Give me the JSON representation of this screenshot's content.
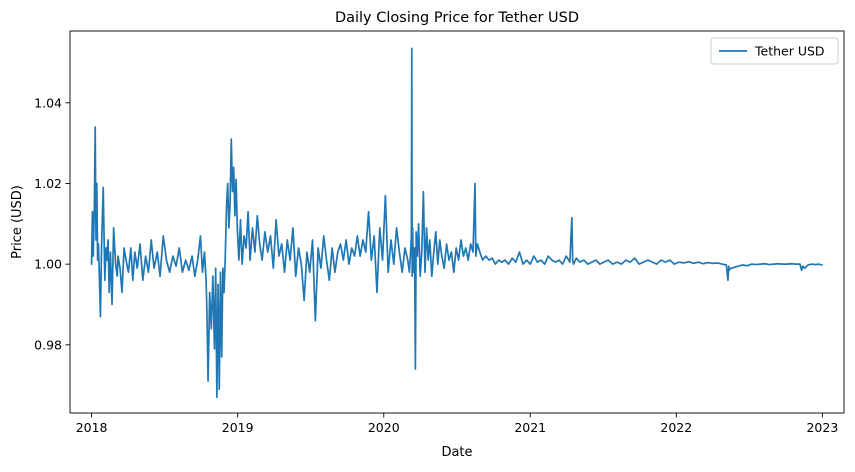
{
  "chart_data": {
    "type": "line",
    "title": "Daily Closing Price for Tether USD",
    "xlabel": "Date",
    "ylabel": "Price (USD)",
    "xlim": [
      "2017-11-08",
      "2023-02-24"
    ],
    "ylim": [
      0.9631,
      1.0578
    ],
    "x_ticks": [
      "2018",
      "2019",
      "2020",
      "2021",
      "2022",
      "2023"
    ],
    "y_ticks": [
      "0.98",
      "1.00",
      "1.02",
      "1.04"
    ],
    "grid": false,
    "legend_position": "upper right",
    "series": [
      {
        "name": "Tether USD",
        "color": "#1f77b4",
        "x": [
          "2018-01-01",
          "2018-01-03",
          "2018-01-05",
          "2018-01-08",
          "2018-01-10",
          "2018-01-12",
          "2018-01-14",
          "2018-01-16",
          "2018-01-18",
          "2018-01-20",
          "2018-01-23",
          "2018-01-26",
          "2018-01-30",
          "2018-02-03",
          "2018-02-06",
          "2018-02-08",
          "2018-02-11",
          "2018-02-14",
          "2018-02-17",
          "2018-02-21",
          "2018-02-25",
          "2018-03-02",
          "2018-03-06",
          "2018-03-08",
          "2018-03-13",
          "2018-03-18",
          "2018-03-23",
          "2018-03-28",
          "2018-04-03",
          "2018-04-09",
          "2018-04-14",
          "2018-04-19",
          "2018-04-25",
          "2018-05-02",
          "2018-05-09",
          "2018-05-16",
          "2018-05-23",
          "2018-05-30",
          "2018-06-06",
          "2018-06-14",
          "2018-06-21",
          "2018-06-29",
          "2018-07-07",
          "2018-07-15",
          "2018-07-23",
          "2018-07-31",
          "2018-08-08",
          "2018-08-16",
          "2018-08-24",
          "2018-09-01",
          "2018-09-09",
          "2018-09-16",
          "2018-09-23",
          "2018-09-30",
          "2018-10-05",
          "2018-10-10",
          "2018-10-14",
          "2018-10-16",
          "2018-10-19",
          "2018-10-23",
          "2018-10-27",
          "2018-10-31",
          "2018-11-04",
          "2018-11-07",
          "2018-11-10",
          "2018-11-13",
          "2018-11-16",
          "2018-11-19",
          "2018-11-22",
          "2018-11-25",
          "2018-11-28",
          "2018-12-01",
          "2018-12-04",
          "2018-12-07",
          "2018-12-10",
          "2018-12-13",
          "2018-12-16",
          "2018-12-19",
          "2018-12-22",
          "2018-12-25",
          "2018-12-28",
          "2018-12-31",
          "2019-01-04",
          "2019-01-08",
          "2019-01-12",
          "2019-01-17",
          "2019-01-22",
          "2019-01-27",
          "2019-02-01",
          "2019-02-07",
          "2019-02-13",
          "2019-02-19",
          "2019-02-25",
          "2019-03-03",
          "2019-03-10",
          "2019-03-17",
          "2019-03-24",
          "2019-03-31",
          "2019-04-07",
          "2019-04-14",
          "2019-04-21",
          "2019-04-28",
          "2019-05-05",
          "2019-05-12",
          "2019-05-19",
          "2019-05-26",
          "2019-06-02",
          "2019-06-09",
          "2019-06-16",
          "2019-06-23",
          "2019-06-30",
          "2019-07-07",
          "2019-07-14",
          "2019-07-21",
          "2019-07-28",
          "2019-08-04",
          "2019-08-11",
          "2019-08-18",
          "2019-08-25",
          "2019-09-01",
          "2019-09-08",
          "2019-09-15",
          "2019-09-22",
          "2019-09-29",
          "2019-10-06",
          "2019-10-13",
          "2019-10-20",
          "2019-10-27",
          "2019-11-03",
          "2019-11-10",
          "2019-11-17",
          "2019-11-24",
          "2019-12-01",
          "2019-12-08",
          "2019-12-15",
          "2019-12-22",
          "2019-12-29",
          "2020-01-05",
          "2020-01-12",
          "2020-01-19",
          "2020-01-26",
          "2020-02-02",
          "2020-02-09",
          "2020-02-16",
          "2020-02-23",
          "2020-03-01",
          "2020-03-05",
          "2020-03-08",
          "2020-03-10",
          "2020-03-11",
          "2020-03-12",
          "2020-03-13",
          "2020-03-14",
          "2020-03-16",
          "2020-03-18",
          "2020-03-20",
          "2020-03-22",
          "2020-03-25",
          "2020-03-28",
          "2020-04-01",
          "2020-04-05",
          "2020-04-09",
          "2020-04-13",
          "2020-04-17",
          "2020-04-21",
          "2020-04-25",
          "2020-04-30",
          "2020-05-05",
          "2020-05-10",
          "2020-05-15",
          "2020-05-20",
          "2020-05-25",
          "2020-05-31",
          "2020-06-06",
          "2020-06-12",
          "2020-06-18",
          "2020-06-24",
          "2020-06-30",
          "2020-07-06",
          "2020-07-12",
          "2020-07-18",
          "2020-07-24",
          "2020-07-30",
          "2020-08-05",
          "2020-08-11",
          "2020-08-16",
          "2020-08-18",
          "2020-08-22",
          "2020-08-28",
          "2020-09-04",
          "2020-09-12",
          "2020-09-20",
          "2020-09-28",
          "2020-10-06",
          "2020-10-14",
          "2020-10-22",
          "2020-10-30",
          "2020-11-08",
          "2020-11-17",
          "2020-11-26",
          "2020-12-05",
          "2020-12-14",
          "2020-12-23",
          "2021-01-01",
          "2021-01-10",
          "2021-01-19",
          "2021-01-28",
          "2021-02-06",
          "2021-02-15",
          "2021-02-24",
          "2021-03-05",
          "2021-03-14",
          "2021-03-23",
          "2021-04-01",
          "2021-04-10",
          "2021-04-15",
          "2021-04-17",
          "2021-04-19",
          "2021-04-26",
          "2021-05-05",
          "2021-05-15",
          "2021-05-25",
          "2021-06-04",
          "2021-06-14",
          "2021-06-24",
          "2021-07-04",
          "2021-07-15",
          "2021-07-26",
          "2021-08-06",
          "2021-08-17",
          "2021-08-28",
          "2021-09-08",
          "2021-09-19",
          "2021-09-30",
          "2021-10-11",
          "2021-10-22",
          "2021-11-02",
          "2021-11-13",
          "2021-11-24",
          "2021-12-05",
          "2021-12-16",
          "2021-12-27",
          "2022-01-08",
          "2022-01-20",
          "2022-02-01",
          "2022-02-13",
          "2022-02-25",
          "2022-03-09",
          "2022-03-21",
          "2022-04-02",
          "2022-04-14",
          "2022-04-26",
          "2022-05-06",
          "2022-05-10",
          "2022-05-12",
          "2022-05-13",
          "2022-05-18",
          "2022-05-25",
          "2022-06-05",
          "2022-06-16",
          "2022-06-27",
          "2022-07-08",
          "2022-07-19",
          "2022-07-30",
          "2022-08-10",
          "2022-08-21",
          "2022-09-01",
          "2022-09-12",
          "2022-09-23",
          "2022-10-04",
          "2022-10-15",
          "2022-10-26",
          "2022-11-06",
          "2022-11-10",
          "2022-11-13",
          "2022-11-18",
          "2022-11-26",
          "2022-12-05",
          "2022-12-14",
          "2022-12-23",
          "2022-12-31"
        ],
        "y": [
          1.0,
          1.013,
          1.002,
          1.015,
          1.034,
          1.006,
          1.02,
          1.001,
          1.005,
          0.9985,
          0.987,
          1.005,
          1.019,
          0.996,
          1.004,
          1.001,
          1.006,
          0.993,
          1.003,
          0.99,
          1.009,
          1.0,
          0.997,
          1.002,
          0.999,
          0.993,
          1.004,
          1.001,
          0.998,
          1.004,
          0.996,
          1.003,
          0.999,
          1.005,
          0.996,
          1.002,
          0.998,
          1.006,
          0.999,
          1.003,
          0.997,
          1.007,
          1.001,
          0.998,
          1.002,
          0.9995,
          1.004,
          0.998,
          1.001,
          0.9985,
          1.002,
          0.997,
          1.001,
          1.007,
          0.998,
          1.003,
          0.996,
          0.989,
          0.971,
          0.993,
          0.984,
          0.997,
          0.979,
          0.999,
          0.967,
          0.995,
          0.969,
          0.998,
          0.977,
          0.999,
          0.993,
          1.002,
          1.014,
          1.02,
          1.009,
          1.015,
          1.031,
          1.018,
          1.024,
          1.012,
          1.021,
          1.009,
          1.001,
          1.011,
          1.0,
          1.007,
          1.004,
          1.013,
          1.001,
          1.009,
          1.003,
          1.012,
          1.005,
          1.001,
          1.008,
          1.003,
          1.007,
          0.999,
          1.011,
          1.002,
          1.005,
          0.998,
          1.006,
          1.001,
          1.009,
          0.997,
          1.004,
          1.0,
          0.991,
          1.003,
          0.998,
          1.006,
          0.986,
          1.004,
          0.999,
          1.007,
          1.001,
          0.996,
          1.004,
          0.998,
          1.003,
          1.005,
          1.001,
          1.006,
          1.0,
          1.004,
          1.002,
          1.007,
          1.002,
          1.006,
          1.003,
          1.013,
          1.001,
          1.007,
          0.993,
          1.009,
          1.001,
          1.017,
          0.998,
          1.006,
          1.0,
          1.009,
          1.003,
          0.998,
          1.004,
          1.001,
          0.998,
          1.003,
          1.007,
          1.0535,
          0.997,
          1.009,
          1.004,
          0.998,
          1.004,
          0.974,
          1.008,
          1.002,
          1.01,
          0.997,
          1.003,
          1.018,
          0.998,
          1.009,
          1.001,
          1.006,
          0.997,
          1.003,
          1.008,
          1.0,
          1.006,
          1.002,
          0.999,
          1.005,
          1.001,
          1.003,
          0.998,
          1.004,
          1.001,
          1.006,
          1.002,
          1.004,
          1.001,
          1.005,
          1.003,
          1.02,
          1.002,
          1.005,
          1.003,
          1.001,
          1.002,
          1.001,
          1.0015,
          1.0,
          1.001,
          1.0005,
          1.001,
          1.0,
          1.0015,
          1.0005,
          1.003,
          1.0,
          1.001,
          1.0,
          1.002,
          1.0005,
          1.001,
          1.0,
          1.002,
          1.001,
          1.0005,
          1.001,
          1.0,
          1.002,
          1.0005,
          1.0115,
          1.001,
          1.0,
          1.0015,
          1.0005,
          1.001,
          1.0,
          1.0005,
          1.001,
          1.0,
          1.0005,
          1.001,
          1.0,
          1.0005,
          1.0,
          1.001,
          1.0005,
          1.0015,
          1.0,
          1.0005,
          1.001,
          1.0005,
          1.0,
          1.001,
          1.0005,
          1.001,
          1.0,
          1.0005,
          1.0003,
          1.0006,
          1.0002,
          1.0005,
          1.0001,
          1.0004,
          1.0002,
          1.0003,
          1.0,
          0.9998,
          0.996,
          0.9995,
          0.9985,
          0.999,
          0.9992,
          0.9995,
          0.9998,
          0.9996,
          1.0,
          0.9999,
          1.0,
          1.0001,
          0.9999,
          1.0,
          1.0001,
          1.0,
          1.0,
          1.0001,
          1.0,
          1.0,
          0.9985,
          0.9995,
          0.999,
          0.9998,
          1.0,
          0.9999,
          1.0,
          0.9998
        ]
      }
    ]
  }
}
